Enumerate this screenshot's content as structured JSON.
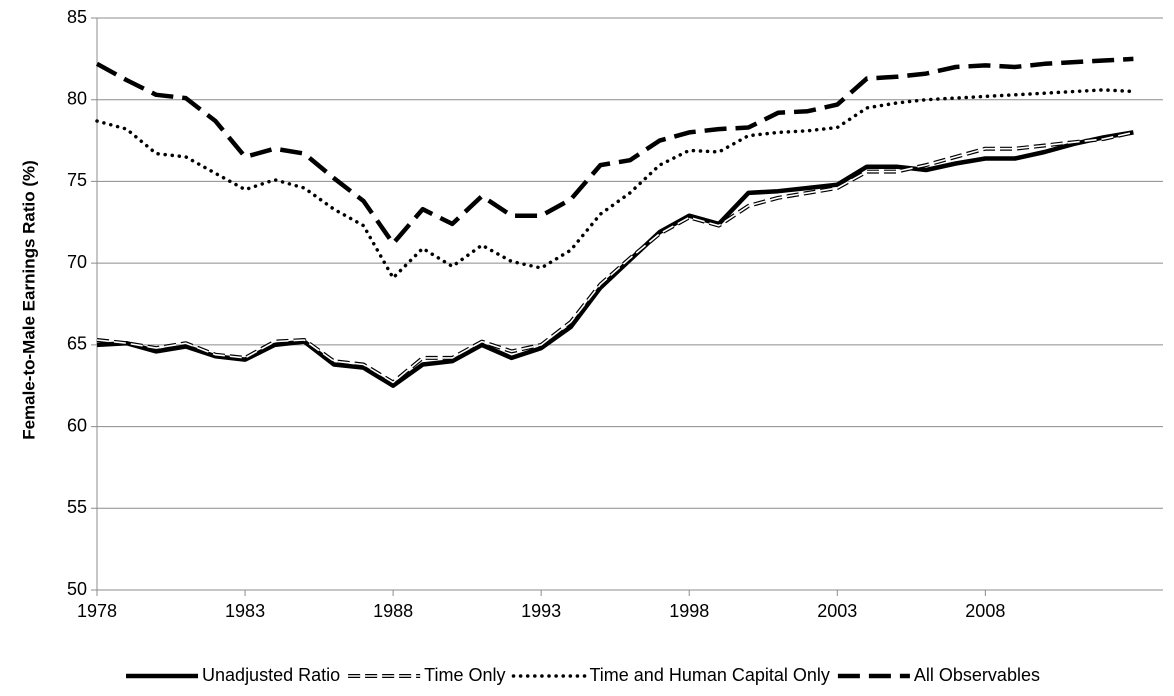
{
  "chart_data": {
    "type": "line",
    "y_label": "Female-to-Male Earnings Ratio (%)",
    "x": [
      1978,
      1979,
      1980,
      1981,
      1982,
      1983,
      1984,
      1985,
      1986,
      1987,
      1988,
      1989,
      1990,
      1991,
      1992,
      1993,
      1994,
      1995,
      1996,
      1997,
      1998,
      1999,
      2000,
      2001,
      2002,
      2003,
      2004,
      2005,
      2006,
      2007,
      2008,
      2009,
      2010,
      2011,
      2012,
      2013
    ],
    "xlim": [
      1978,
      2014
    ],
    "xticks": [
      1978,
      1983,
      1988,
      1993,
      1998,
      2003,
      2008
    ],
    "ylim": [
      50,
      85
    ],
    "yticks": [
      50,
      55,
      60,
      65,
      70,
      75,
      80,
      85
    ],
    "grid": true,
    "legend": "bottom",
    "series": [
      {
        "name": "Unadjusted Ratio",
        "color": "#000000",
        "style": "solid",
        "values": [
          65.0,
          65.1,
          64.6,
          64.9,
          64.3,
          64.1,
          65.0,
          65.2,
          63.8,
          63.6,
          62.5,
          63.8,
          64.0,
          65.0,
          64.2,
          64.8,
          66.1,
          68.5,
          70.2,
          71.9,
          72.9,
          72.4,
          74.3,
          74.4,
          74.6,
          74.8,
          75.9,
          75.9,
          75.7,
          76.1,
          76.4,
          76.4,
          76.8,
          77.3,
          77.7,
          78.0
        ]
      },
      {
        "name": "Time Only",
        "color": "#000000",
        "style": "double-dash",
        "values": [
          65.3,
          65.1,
          64.8,
          65.1,
          64.4,
          64.2,
          65.2,
          65.3,
          64.0,
          63.8,
          62.7,
          64.2,
          64.2,
          65.2,
          64.6,
          65.0,
          66.4,
          68.7,
          70.3,
          71.8,
          72.8,
          72.3,
          73.5,
          74.0,
          74.3,
          74.6,
          75.6,
          75.6,
          76.0,
          76.5,
          77.0,
          77.0,
          77.2,
          77.4,
          77.6,
          78.0
        ]
      },
      {
        "name": "Time and Human Capital Only",
        "color": "#000000",
        "style": "dotted",
        "values": [
          78.7,
          78.2,
          76.7,
          76.5,
          75.5,
          74.5,
          75.1,
          74.6,
          73.3,
          72.3,
          69.1,
          70.9,
          69.8,
          71.1,
          70.1,
          69.7,
          70.8,
          73.0,
          74.3,
          76.0,
          76.9,
          76.8,
          77.8,
          78.0,
          78.1,
          78.3,
          79.5,
          79.8,
          80.0,
          80.1,
          80.2,
          80.3,
          80.4,
          80.5,
          80.6,
          80.5
        ]
      },
      {
        "name": "All Observables",
        "color": "#000000",
        "style": "dash",
        "values": [
          82.2,
          81.2,
          80.3,
          80.1,
          78.7,
          76.5,
          77.0,
          76.7,
          75.2,
          73.8,
          71.2,
          73.3,
          72.4,
          74.1,
          72.9,
          72.9,
          73.9,
          76.0,
          76.3,
          77.5,
          78.0,
          78.2,
          78.3,
          79.2,
          79.3,
          79.7,
          81.3,
          81.4,
          81.6,
          82.0,
          82.1,
          82.0,
          82.2,
          82.3,
          82.4,
          82.5
        ]
      }
    ]
  }
}
